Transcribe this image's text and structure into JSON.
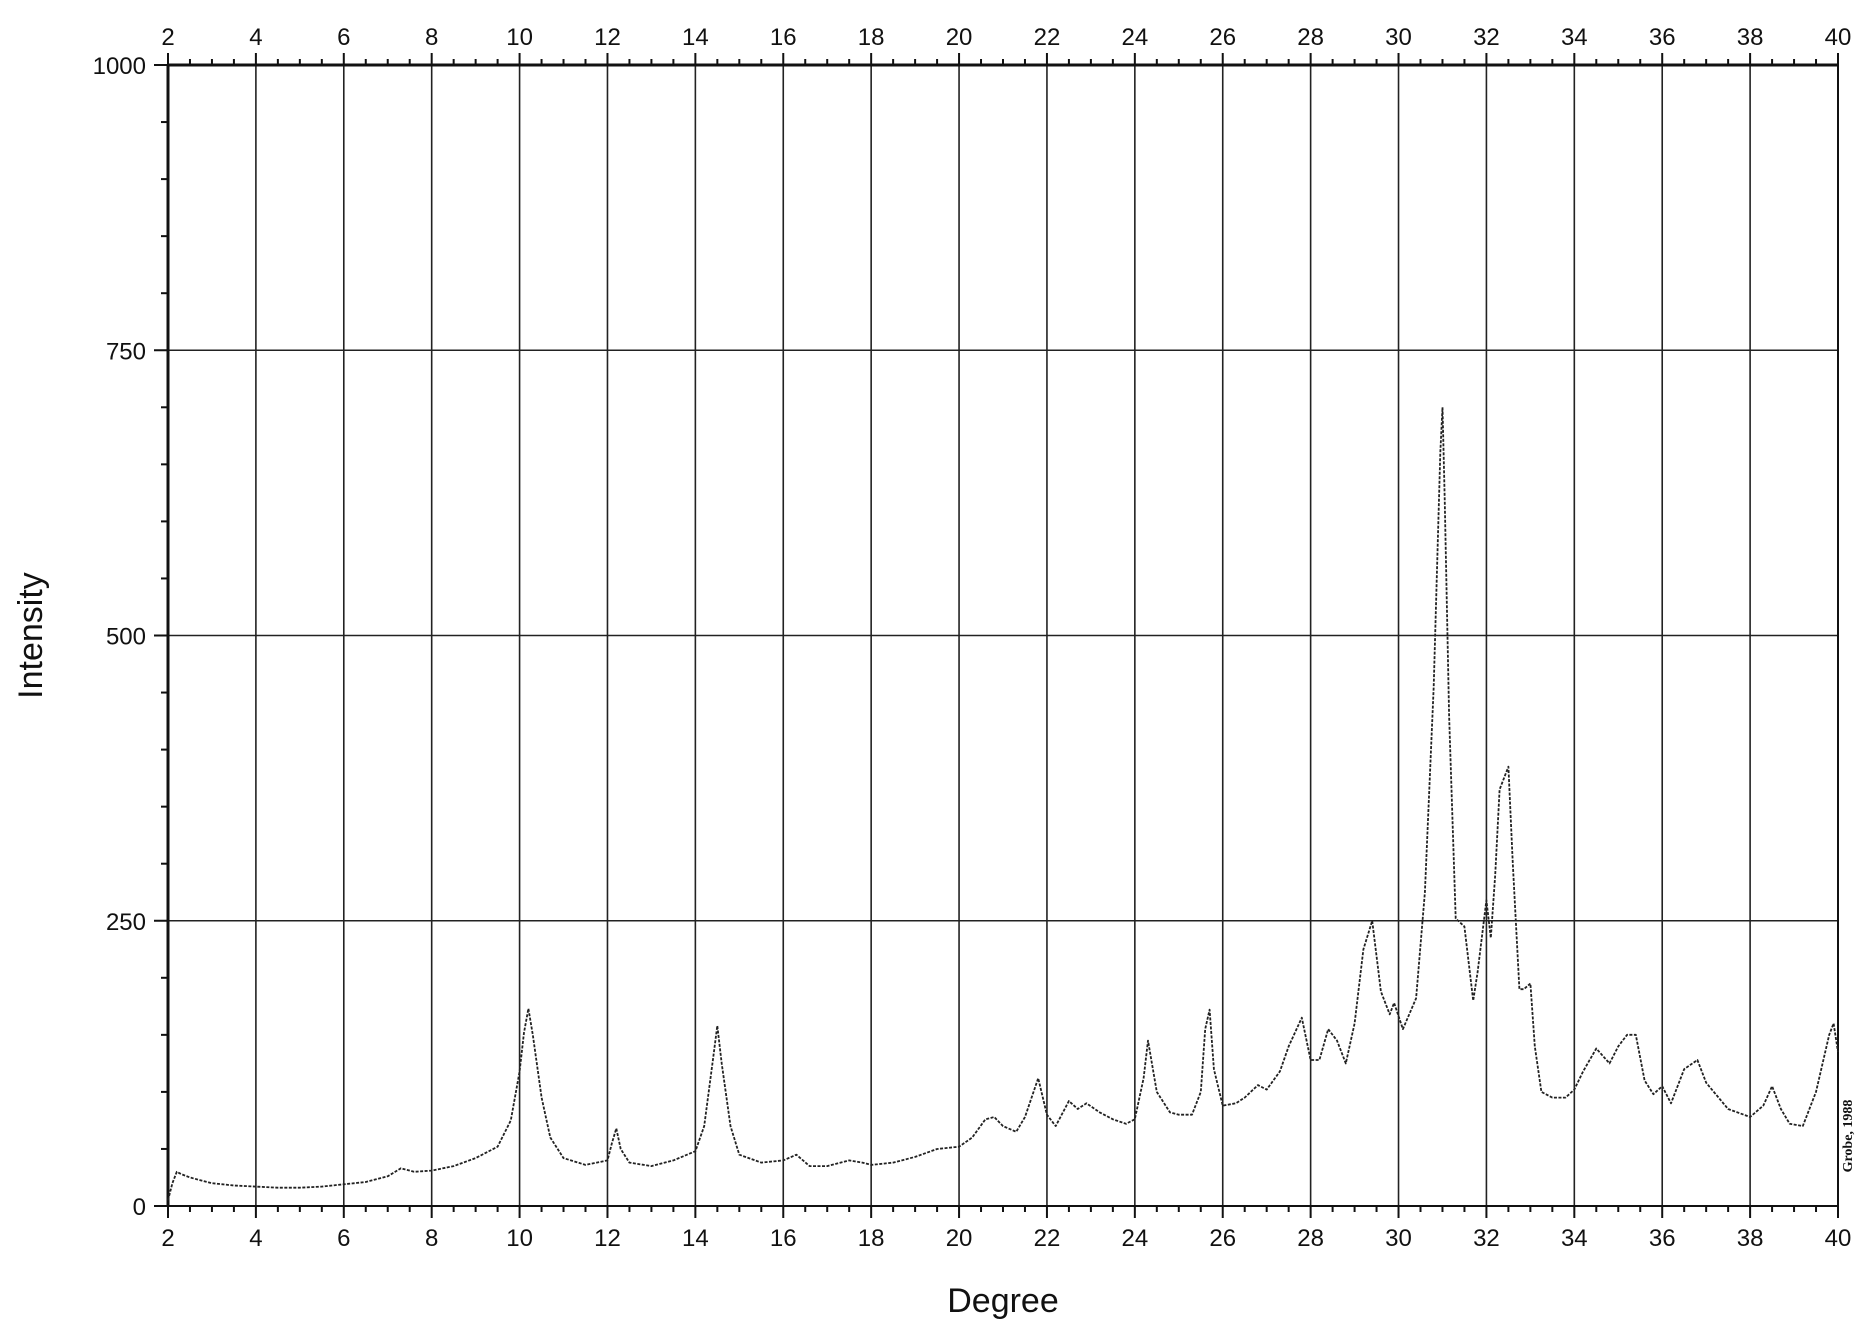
{
  "chart_data": {
    "type": "line",
    "title": "",
    "xlabel": "Degree",
    "ylabel": "Intensity",
    "xlim": [
      2,
      40
    ],
    "ylim": [
      0,
      1000
    ],
    "x_ticks": [
      2,
      4,
      6,
      8,
      10,
      12,
      14,
      16,
      18,
      20,
      22,
      24,
      26,
      28,
      30,
      32,
      34,
      36,
      38,
      40
    ],
    "y_ticks": [
      0,
      250,
      500,
      750,
      1000
    ],
    "grid": "vertical lines at every major x tick; horizontal lines at 250, 500, 750",
    "top_axis_labels": true,
    "credit": "Grobe, 1988",
    "line_color": "#222222",
    "line_style": "dotted",
    "series": [
      {
        "x": [
          2.0,
          2.1,
          2.2,
          2.3,
          2.5,
          3.0,
          3.5,
          4.0,
          4.5,
          5.0,
          5.5,
          6.0,
          6.5,
          7.0,
          7.3,
          7.6,
          8.0,
          8.5,
          9.0,
          9.5,
          9.8,
          10.0,
          10.1,
          10.2,
          10.3,
          10.5,
          10.7,
          11.0,
          11.5,
          12.0,
          12.1,
          12.2,
          12.3,
          12.5,
          13.0,
          13.5,
          14.0,
          14.2,
          14.4,
          14.5,
          14.6,
          14.8,
          15.0,
          15.5,
          16.0,
          16.3,
          16.6,
          17.0,
          17.5,
          17.8,
          18.0,
          18.5,
          19.0,
          19.5,
          20.0,
          20.3,
          20.6,
          20.8,
          21.0,
          21.3,
          21.5,
          21.8,
          22.0,
          22.2,
          22.5,
          22.7,
          22.9,
          23.2,
          23.5,
          23.8,
          24.0,
          24.2,
          24.3,
          24.5,
          24.8,
          25.0,
          25.3,
          25.5,
          25.6,
          25.7,
          25.8,
          26.0,
          26.3,
          26.5,
          26.8,
          27.0,
          27.3,
          27.5,
          27.8,
          28.0,
          28.2,
          28.4,
          28.6,
          28.8,
          29.0,
          29.2,
          29.4,
          29.6,
          29.8,
          29.9,
          30.1,
          30.4,
          30.6,
          30.8,
          30.95,
          31.0,
          31.05,
          31.15,
          31.3,
          31.5,
          31.7,
          31.8,
          32.0,
          32.1,
          32.2,
          32.3,
          32.5,
          32.6,
          32.75,
          32.85,
          33.0,
          33.1,
          33.25,
          33.5,
          33.8,
          34.0,
          34.2,
          34.5,
          34.8,
          35.0,
          35.2,
          35.4,
          35.6,
          35.8,
          36.0,
          36.2,
          36.5,
          36.8,
          37.0,
          37.5,
          38.0,
          38.3,
          38.5,
          38.7,
          38.9,
          39.2,
          39.5,
          39.8,
          39.9,
          40.0
        ],
        "y": [
          5,
          20,
          30,
          28,
          25,
          20,
          18,
          17,
          16,
          16,
          17,
          19,
          21,
          26,
          33,
          30,
          31,
          35,
          42,
          52,
          75,
          118,
          152,
          173,
          150,
          95,
          60,
          42,
          36,
          40,
          55,
          68,
          50,
          38,
          35,
          40,
          48,
          70,
          128,
          158,
          125,
          70,
          45,
          38,
          40,
          45,
          35,
          35,
          40,
          38,
          36,
          38,
          43,
          50,
          52,
          60,
          76,
          78,
          70,
          65,
          78,
          112,
          80,
          70,
          92,
          85,
          90,
          82,
          76,
          72,
          76,
          112,
          145,
          100,
          82,
          80,
          80,
          100,
          155,
          172,
          120,
          88,
          90,
          95,
          106,
          102,
          118,
          140,
          165,
          128,
          128,
          155,
          145,
          125,
          160,
          225,
          250,
          188,
          168,
          178,
          155,
          182,
          275,
          455,
          660,
          700,
          620,
          430,
          252,
          245,
          180,
          205,
          268,
          235,
          290,
          365,
          385,
          300,
          190,
          190,
          195,
          140,
          100,
          95,
          95,
          102,
          118,
          138,
          125,
          140,
          150,
          150,
          110,
          98,
          105,
          90,
          120,
          128,
          108,
          85,
          78,
          88,
          105,
          85,
          72,
          70,
          100,
          150,
          160,
          135
        ]
      }
    ]
  }
}
